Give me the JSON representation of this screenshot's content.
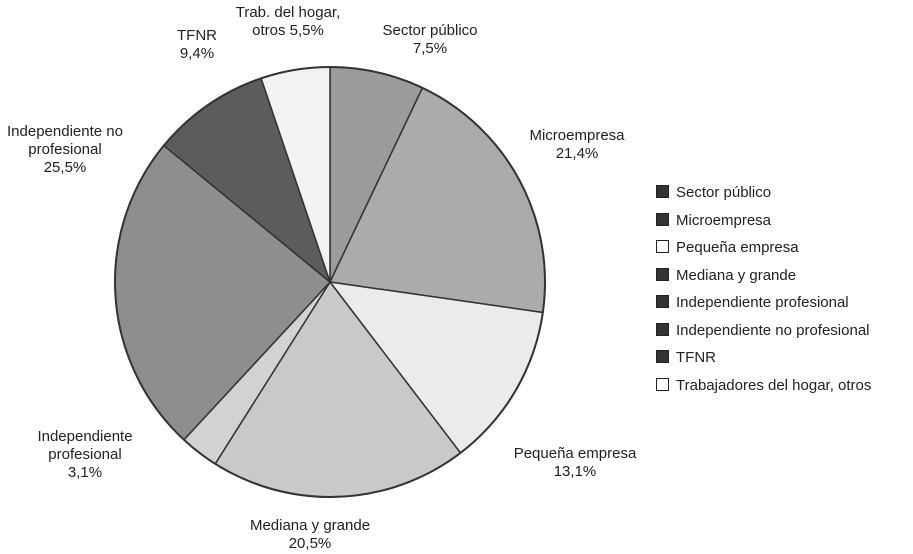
{
  "chart_data": {
    "type": "pie",
    "categories": [
      "Sector público",
      "Microempresa",
      "Pequeña empresa",
      "Mediana y grande",
      "Independiente profesional",
      "Independiente no profesional",
      "TFNR",
      "Trabajadores del hogar, otros"
    ],
    "slice_labels": [
      "Sector público",
      "Microempresa",
      "Pequeña empresa",
      "Mediana y grande",
      "Independiente profesional",
      "Independiente no profesional",
      "TFNR",
      "Trab. del hogar, otros"
    ],
    "values": [
      7.5,
      21.4,
      13.1,
      20.5,
      3.1,
      25.5,
      9.4,
      5.5
    ],
    "value_labels": [
      "7,5%",
      "21,4%",
      "13,1%",
      "20,5%",
      "3,1%",
      "25,5%",
      "9,4%",
      "5,5%"
    ],
    "colors": [
      "#9b9b9b",
      "#ababab",
      "#ebebeb",
      "#c9c9c9",
      "#d2d2d2",
      "#8e8e8e",
      "#5c5c5c",
      "#f2f2f2"
    ],
    "legend": "right"
  }
}
